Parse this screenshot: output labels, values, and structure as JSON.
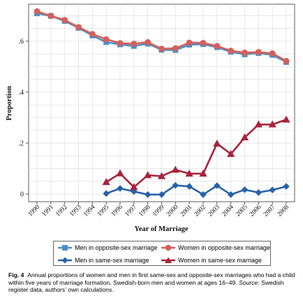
{
  "chart_data": {
    "type": "line",
    "xlabel": "Year of Marriage",
    "ylabel": "Proportion",
    "ylim": [
      -0.03,
      0.745
    ],
    "y_ticks": [
      0,
      0.2,
      0.4,
      0.6
    ],
    "y_tick_labels": [
      "0",
      ".2",
      ".4",
      ".6"
    ],
    "grid": true,
    "legend_position": "bottom",
    "x": [
      "1990",
      "1991",
      "1992",
      "1993",
      "1994",
      "1995",
      "1996",
      "1997",
      "1998",
      "1999",
      "2000",
      "2001",
      "2002",
      "2003",
      "2004",
      "2005",
      "2006",
      "2007",
      "2008"
    ],
    "series": [
      {
        "name": "Men in opposite-sex marriage",
        "color": "#4a8fc9",
        "marker": "square",
        "values": [
          0.709,
          0.699,
          0.679,
          0.652,
          0.622,
          0.596,
          0.587,
          0.581,
          0.59,
          0.566,
          0.565,
          0.586,
          0.588,
          0.576,
          0.558,
          0.548,
          0.553,
          0.546,
          0.518
        ]
      },
      {
        "name": "Women in opposite-sex marriage",
        "color": "#d75f5a",
        "marker": "circle",
        "values": [
          0.717,
          0.699,
          0.683,
          0.655,
          0.628,
          0.607,
          0.592,
          0.59,
          0.596,
          0.57,
          0.572,
          0.594,
          0.593,
          0.581,
          0.562,
          0.555,
          0.557,
          0.552,
          0.522
        ]
      },
      {
        "name": "Men in same-sex marriage",
        "color": "#2862a8",
        "marker": "diamond",
        "values": [
          null,
          null,
          null,
          null,
          null,
          0.002,
          0.022,
          0.01,
          -0.002,
          -0.002,
          0.034,
          0.03,
          -0.002,
          0.033,
          -0.002,
          0.017,
          0.006,
          0.016,
          0.03
        ]
      },
      {
        "name": "Women in same-sex marriage",
        "color": "#a8243a",
        "marker": "triangle",
        "values": [
          null,
          null,
          null,
          null,
          null,
          0.047,
          0.081,
          0.027,
          0.074,
          0.07,
          0.095,
          0.08,
          0.08,
          0.198,
          0.157,
          0.222,
          0.273,
          0.273,
          0.292
        ]
      }
    ]
  },
  "caption": {
    "fig_label": "Fig. 4",
    "text": "Annual proportions of women and men in first same-sex and opposite-sex marriages who had a child within five years of marriage formation, Swedish-born men and women at ages 16–49.",
    "source_label": "Source:",
    "source_text": "Swedish register data, authors’ own calculations."
  }
}
